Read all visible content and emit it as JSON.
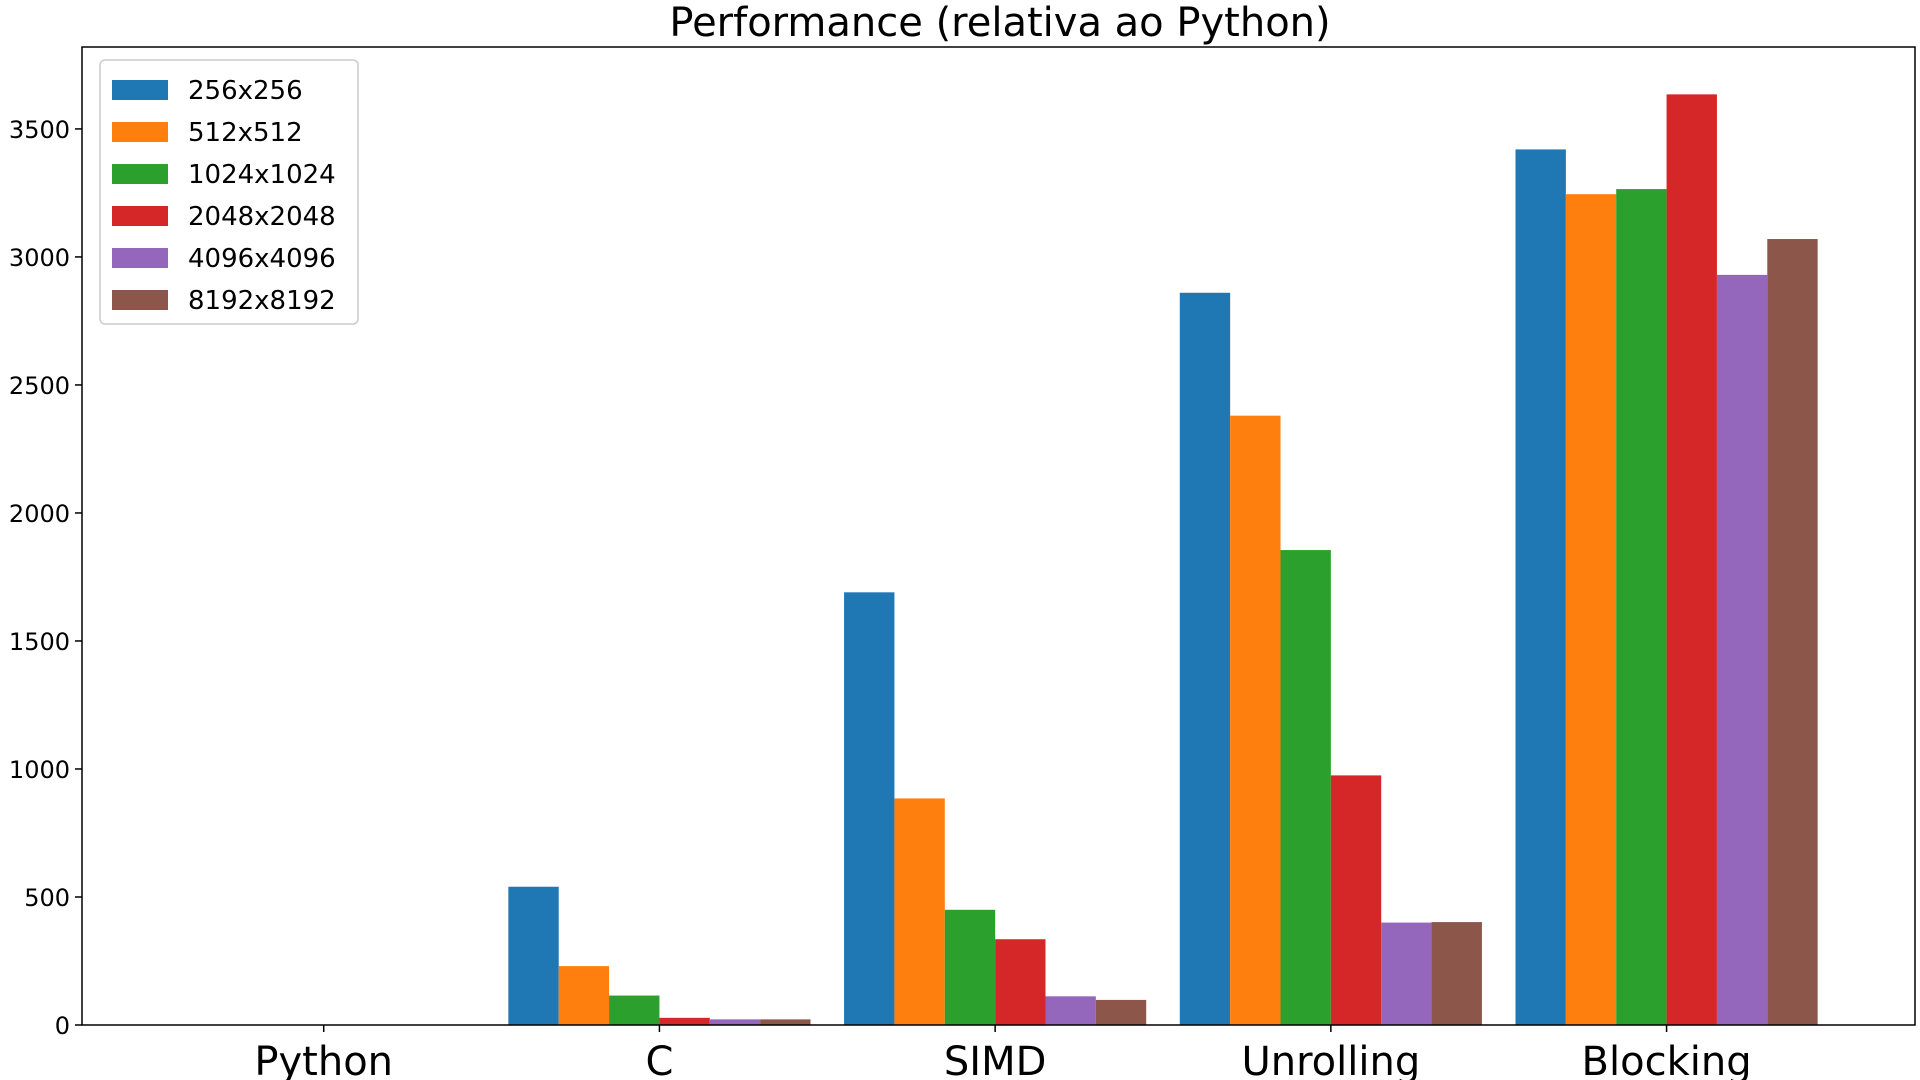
{
  "chart_data": {
    "type": "bar",
    "title": "Performance (relativa ao Python)",
    "xlabel": "",
    "ylabel": "",
    "categories": [
      "Python",
      "C",
      "SIMD",
      "Unrolling",
      "Blocking"
    ],
    "ylim": [
      0,
      3820
    ],
    "yticks": [
      0,
      500,
      1000,
      1500,
      2000,
      2500,
      3000,
      3500
    ],
    "grid": false,
    "legend_position": "top-left",
    "series": [
      {
        "name": "256x256",
        "color": "#1f77b4",
        "values": [
          1,
          540,
          1690,
          2860,
          3420
        ]
      },
      {
        "name": "512x512",
        "color": "#ff7f0e",
        "values": [
          1,
          230,
          885,
          2380,
          3245
        ]
      },
      {
        "name": "1024x1024",
        "color": "#2ca02c",
        "values": [
          1,
          115,
          450,
          1855,
          3265
        ]
      },
      {
        "name": "2048x2048",
        "color": "#d62728",
        "values": [
          1,
          28,
          335,
          975,
          3635
        ]
      },
      {
        "name": "4096x4096",
        "color": "#9467bd",
        "values": [
          1,
          22,
          112,
          400,
          2930
        ]
      },
      {
        "name": "8192x8192",
        "color": "#8c564b",
        "values": [
          1,
          22,
          98,
          402,
          3070
        ]
      }
    ]
  }
}
